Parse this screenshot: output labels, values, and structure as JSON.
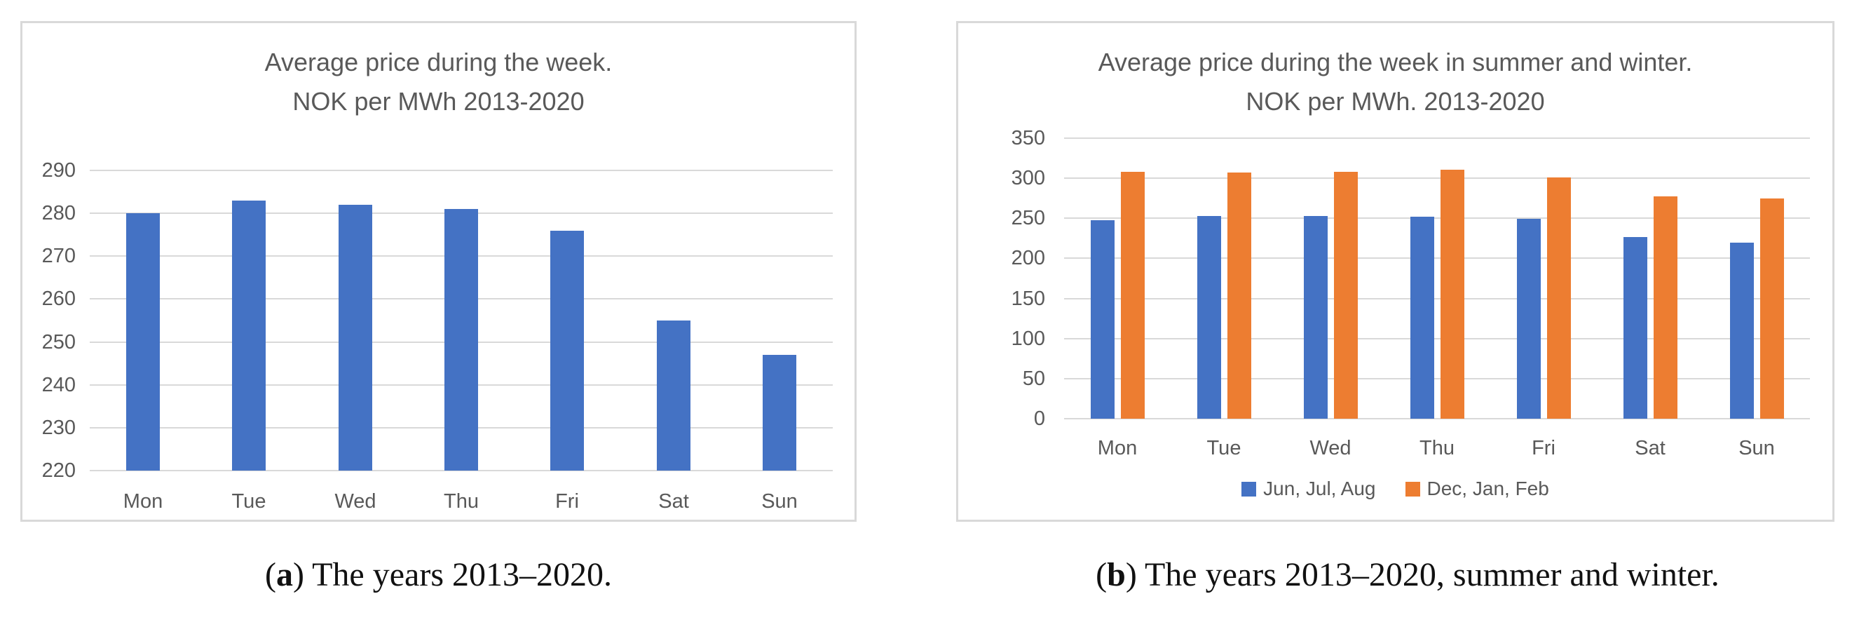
{
  "colors": {
    "series_blue": "#4472C4",
    "series_orange": "#ED7D31",
    "gridline": "#D9D9D9",
    "panel_border": "#D9D9D9",
    "axis_text": "#595959"
  },
  "chart_data": [
    {
      "panel": "a",
      "type": "bar",
      "title_lines": [
        "Average price during the week.",
        "NOK per MWh 2013-2020"
      ],
      "categories": [
        "Mon",
        "Tue",
        "Wed",
        "Thu",
        "Fri",
        "Sat",
        "Sun"
      ],
      "series": [
        {
          "color": "#4472C4",
          "values": [
            280,
            283,
            282,
            281,
            276,
            255,
            247
          ]
        }
      ],
      "ylim": [
        220,
        290
      ],
      "yticks": [
        220,
        230,
        240,
        250,
        260,
        270,
        280,
        290
      ],
      "grid": true,
      "legend": false
    },
    {
      "panel": "b",
      "type": "bar",
      "title_lines": [
        "Average price during the week in summer and winter.",
        "NOK per MWh. 2013-2020"
      ],
      "categories": [
        "Mon",
        "Tue",
        "Wed",
        "Thu",
        "Fri",
        "Sat",
        "Sun"
      ],
      "series": [
        {
          "name": "Jun, Jul, Aug",
          "color": "#4472C4",
          "values": [
            248,
            253,
            253,
            252,
            249,
            227,
            220
          ]
        },
        {
          "name": "Dec, Jan, Feb",
          "color": "#ED7D31",
          "values": [
            308,
            307,
            308,
            311,
            301,
            277,
            275
          ]
        }
      ],
      "ylim": [
        0,
        350
      ],
      "yticks": [
        0,
        50,
        100,
        150,
        200,
        250,
        300,
        350
      ],
      "grid": true,
      "legend": true,
      "legend_position": "bottom"
    }
  ],
  "captions": {
    "a": {
      "open": "(",
      "label": "a",
      "close": ")",
      "text": "The years 2013–2020."
    },
    "b": {
      "open": "(",
      "label": "b",
      "close": ")",
      "text": "The years 2013–2020, summer and winter."
    }
  }
}
